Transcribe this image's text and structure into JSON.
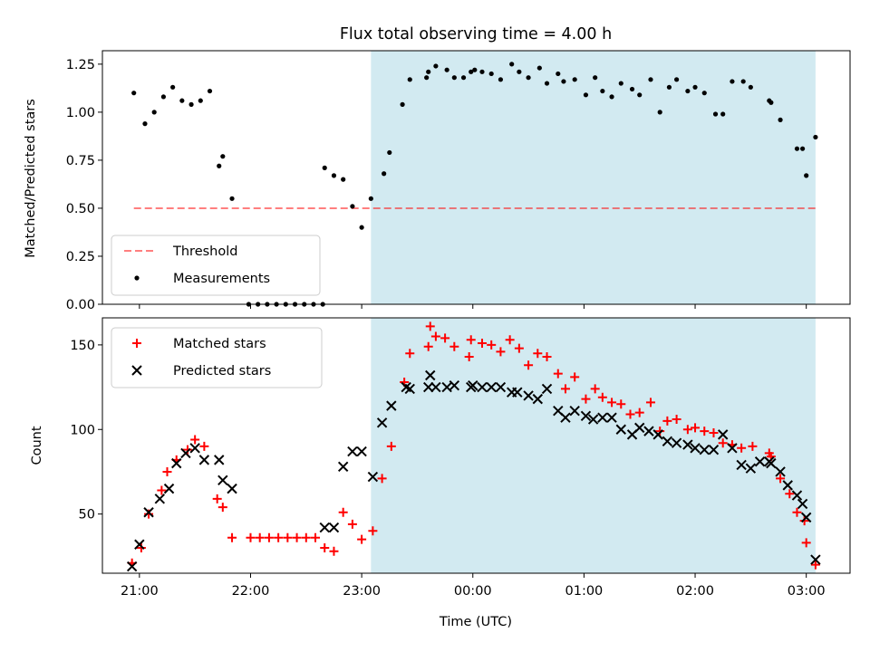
{
  "colors": {
    "shade": "#add8e6",
    "threshold": "#ff0000",
    "measurement": "#000000",
    "matched": "#ff0000",
    "predicted": "#000000"
  },
  "chart_data": [
    {
      "type": "scatter",
      "title": "Flux total observing time = 4.00 h",
      "xlabel": "",
      "ylabel": "Matched/Predicted stars",
      "ylim": [
        0,
        1.32
      ],
      "xlim_hours": [
        20.667,
        27.394
      ],
      "x_tick_labels": [
        "21:00",
        "22:00",
        "23:00",
        "00:00",
        "01:00",
        "02:00",
        "03:00"
      ],
      "y_ticks": [
        "0.00",
        "0.25",
        "0.50",
        "0.75",
        "1.00",
        "1.25"
      ],
      "shaded_interval": [
        "23:05",
        "03:05"
      ],
      "threshold": 0.5,
      "legend": {
        "placement": "lower-left",
        "entries": [
          "Threshold",
          "Measurements"
        ]
      },
      "series": [
        {
          "name": "Measurements",
          "points": [
            [
              "20:57",
              1.1
            ],
            [
              "21:03",
              0.94
            ],
            [
              "21:08",
              1.0
            ],
            [
              "21:13",
              1.08
            ],
            [
              "21:18",
              1.13
            ],
            [
              "21:23",
              1.06
            ],
            [
              "21:28",
              1.04
            ],
            [
              "21:33",
              1.06
            ],
            [
              "21:38",
              1.11
            ],
            [
              "21:43",
              0.72
            ],
            [
              "21:45",
              0.77
            ],
            [
              "21:50",
              0.55
            ],
            [
              "21:59",
              0.0
            ],
            [
              "22:04",
              0.0
            ],
            [
              "22:09",
              0.0
            ],
            [
              "22:14",
              0.0
            ],
            [
              "22:19",
              0.0
            ],
            [
              "22:24",
              0.0
            ],
            [
              "22:29",
              0.0
            ],
            [
              "22:34",
              0.0
            ],
            [
              "22:39",
              0.0
            ],
            [
              "22:40",
              0.71
            ],
            [
              "22:45",
              0.67
            ],
            [
              "22:50",
              0.65
            ],
            [
              "22:55",
              0.51
            ],
            [
              "23:00",
              0.4
            ],
            [
              "23:05",
              0.55
            ],
            [
              "23:12",
              0.68
            ],
            [
              "23:15",
              0.79
            ],
            [
              "23:22",
              1.04
            ],
            [
              "23:26",
              1.17
            ],
            [
              "23:35",
              1.18
            ],
            [
              "23:36",
              1.21
            ],
            [
              "23:40",
              1.24
            ],
            [
              "23:46",
              1.22
            ],
            [
              "23:50",
              1.18
            ],
            [
              "23:55",
              1.18
            ],
            [
              "23:59",
              1.21
            ],
            [
              "00:01",
              1.22
            ],
            [
              "00:05",
              1.21
            ],
            [
              "00:10",
              1.2
            ],
            [
              "00:15",
              1.17
            ],
            [
              "00:21",
              1.25
            ],
            [
              "00:25",
              1.21
            ],
            [
              "00:30",
              1.18
            ],
            [
              "00:36",
              1.23
            ],
            [
              "00:40",
              1.15
            ],
            [
              "00:46",
              1.2
            ],
            [
              "00:49",
              1.16
            ],
            [
              "00:55",
              1.17
            ],
            [
              "01:01",
              1.09
            ],
            [
              "01:06",
              1.18
            ],
            [
              "01:10",
              1.11
            ],
            [
              "01:15",
              1.08
            ],
            [
              "01:20",
              1.15
            ],
            [
              "01:26",
              1.12
            ],
            [
              "01:30",
              1.09
            ],
            [
              "01:36",
              1.17
            ],
            [
              "01:41",
              1.0
            ],
            [
              "01:46",
              1.13
            ],
            [
              "01:50",
              1.17
            ],
            [
              "01:56",
              1.11
            ],
            [
              "02:00",
              1.13
            ],
            [
              "02:05",
              1.1
            ],
            [
              "02:11",
              0.99
            ],
            [
              "02:15",
              0.99
            ],
            [
              "02:20",
              1.16
            ],
            [
              "02:26",
              1.16
            ],
            [
              "02:30",
              1.13
            ],
            [
              "02:40",
              1.06
            ],
            [
              "02:41",
              1.05
            ],
            [
              "02:46",
              0.96
            ],
            [
              "02:55",
              0.81
            ],
            [
              "02:58",
              0.81
            ],
            [
              "03:00",
              0.67
            ],
            [
              "03:05",
              0.87
            ]
          ]
        }
      ]
    },
    {
      "type": "scatter",
      "title": "",
      "xlabel": "Time (UTC)",
      "ylabel": "Count",
      "ylim": [
        15,
        166
      ],
      "xlim_hours": [
        20.667,
        27.394
      ],
      "x_tick_labels": [
        "21:00",
        "22:00",
        "23:00",
        "00:00",
        "01:00",
        "02:00",
        "03:00"
      ],
      "y_ticks": [
        "50",
        "100",
        "150"
      ],
      "shaded_interval": [
        "23:05",
        "03:05"
      ],
      "legend": {
        "placement": "top-left",
        "entries": [
          "Matched stars",
          "Predicted stars"
        ]
      },
      "series": [
        {
          "name": "Matched stars",
          "points": [
            [
              "20:56",
              21
            ],
            [
              "21:01",
              30
            ],
            [
              "21:05",
              50
            ],
            [
              "21:12",
              64
            ],
            [
              "21:15",
              75
            ],
            [
              "21:20",
              82
            ],
            [
              "21:26",
              88
            ],
            [
              "21:30",
              94
            ],
            [
              "21:35",
              90
            ],
            [
              "21:42",
              59
            ],
            [
              "21:45",
              54
            ],
            [
              "21:50",
              36
            ],
            [
              "22:00",
              36
            ],
            [
              "22:05",
              36
            ],
            [
              "22:10",
              36
            ],
            [
              "22:15",
              36
            ],
            [
              "22:20",
              36
            ],
            [
              "22:25",
              36
            ],
            [
              "22:30",
              36
            ],
            [
              "22:35",
              36
            ],
            [
              "22:40",
              30
            ],
            [
              "22:45",
              28
            ],
            [
              "22:50",
              51
            ],
            [
              "22:55",
              44
            ],
            [
              "23:00",
              35
            ],
            [
              "23:06",
              40
            ],
            [
              "23:11",
              71
            ],
            [
              "23:16",
              90
            ],
            [
              "23:23",
              128
            ],
            [
              "23:26",
              145
            ],
            [
              "23:36",
              149
            ],
            [
              "23:37",
              161
            ],
            [
              "23:40",
              155
            ],
            [
              "23:45",
              154
            ],
            [
              "23:50",
              149
            ],
            [
              "23:58",
              143
            ],
            [
              "23:59",
              153
            ],
            [
              "00:05",
              151
            ],
            [
              "00:10",
              150
            ],
            [
              "00:15",
              146
            ],
            [
              "00:20",
              153
            ],
            [
              "00:25",
              148
            ],
            [
              "00:30",
              138
            ],
            [
              "00:35",
              145
            ],
            [
              "00:40",
              143
            ],
            [
              "00:46",
              133
            ],
            [
              "00:50",
              124
            ],
            [
              "00:55",
              131
            ],
            [
              "01:01",
              118
            ],
            [
              "01:06",
              124
            ],
            [
              "01:10",
              119
            ],
            [
              "01:15",
              116
            ],
            [
              "01:20",
              115
            ],
            [
              "01:25",
              109
            ],
            [
              "01:30",
              110
            ],
            [
              "01:36",
              116
            ],
            [
              "01:41",
              99
            ],
            [
              "01:45",
              105
            ],
            [
              "01:50",
              106
            ],
            [
              "01:56",
              100
            ],
            [
              "02:00",
              101
            ],
            [
              "02:05",
              99
            ],
            [
              "02:10",
              98
            ],
            [
              "02:15",
              92
            ],
            [
              "02:20",
              91
            ],
            [
              "02:25",
              89
            ],
            [
              "02:31",
              90
            ],
            [
              "02:40",
              86
            ],
            [
              "02:41",
              84
            ],
            [
              "02:46",
              71
            ],
            [
              "02:51",
              62
            ],
            [
              "02:55",
              51
            ],
            [
              "02:59",
              46
            ],
            [
              "03:00",
              33
            ],
            [
              "03:05",
              20
            ]
          ]
        },
        {
          "name": "Predicted stars",
          "points": [
            [
              "20:56",
              19
            ],
            [
              "21:00",
              32
            ],
            [
              "21:05",
              51
            ],
            [
              "21:11",
              59
            ],
            [
              "21:16",
              65
            ],
            [
              "21:20",
              80
            ],
            [
              "21:25",
              86
            ],
            [
              "21:30",
              89
            ],
            [
              "21:35",
              82
            ],
            [
              "21:43",
              82
            ],
            [
              "21:45",
              70
            ],
            [
              "21:50",
              65
            ],
            [
              "22:40",
              42
            ],
            [
              "22:45",
              42
            ],
            [
              "22:50",
              78
            ],
            [
              "22:55",
              87
            ],
            [
              "23:00",
              87
            ],
            [
              "23:06",
              72
            ],
            [
              "23:11",
              104
            ],
            [
              "23:16",
              114
            ],
            [
              "23:24",
              125
            ],
            [
              "23:26",
              124
            ],
            [
              "23:36",
              125
            ],
            [
              "23:37",
              132
            ],
            [
              "23:40",
              125
            ],
            [
              "23:46",
              125
            ],
            [
              "23:50",
              126
            ],
            [
              "23:59",
              125
            ],
            [
              "00:00",
              126
            ],
            [
              "00:05",
              125
            ],
            [
              "00:10",
              125
            ],
            [
              "00:15",
              125
            ],
            [
              "00:21",
              122
            ],
            [
              "00:24",
              122
            ],
            [
              "00:30",
              120
            ],
            [
              "00:35",
              118
            ],
            [
              "00:40",
              124
            ],
            [
              "00:46",
              111
            ],
            [
              "00:50",
              107
            ],
            [
              "00:55",
              111
            ],
            [
              "01:01",
              108
            ],
            [
              "01:05",
              106
            ],
            [
              "01:10",
              107
            ],
            [
              "01:15",
              107
            ],
            [
              "01:20",
              100
            ],
            [
              "01:26",
              97
            ],
            [
              "01:30",
              101
            ],
            [
              "01:35",
              99
            ],
            [
              "01:40",
              97
            ],
            [
              "01:45",
              93
            ],
            [
              "01:50",
              92
            ],
            [
              "01:56",
              91
            ],
            [
              "02:00",
              89
            ],
            [
              "02:05",
              88
            ],
            [
              "02:10",
              88
            ],
            [
              "02:15",
              97
            ],
            [
              "02:20",
              89
            ],
            [
              "02:25",
              79
            ],
            [
              "02:30",
              77
            ],
            [
              "02:35",
              81
            ],
            [
              "02:40",
              81
            ],
            [
              "02:41",
              80
            ],
            [
              "02:46",
              75
            ],
            [
              "02:50",
              67
            ],
            [
              "02:55",
              61
            ],
            [
              "02:58",
              56
            ],
            [
              "03:00",
              48
            ],
            [
              "03:05",
              23
            ]
          ]
        }
      ]
    }
  ]
}
